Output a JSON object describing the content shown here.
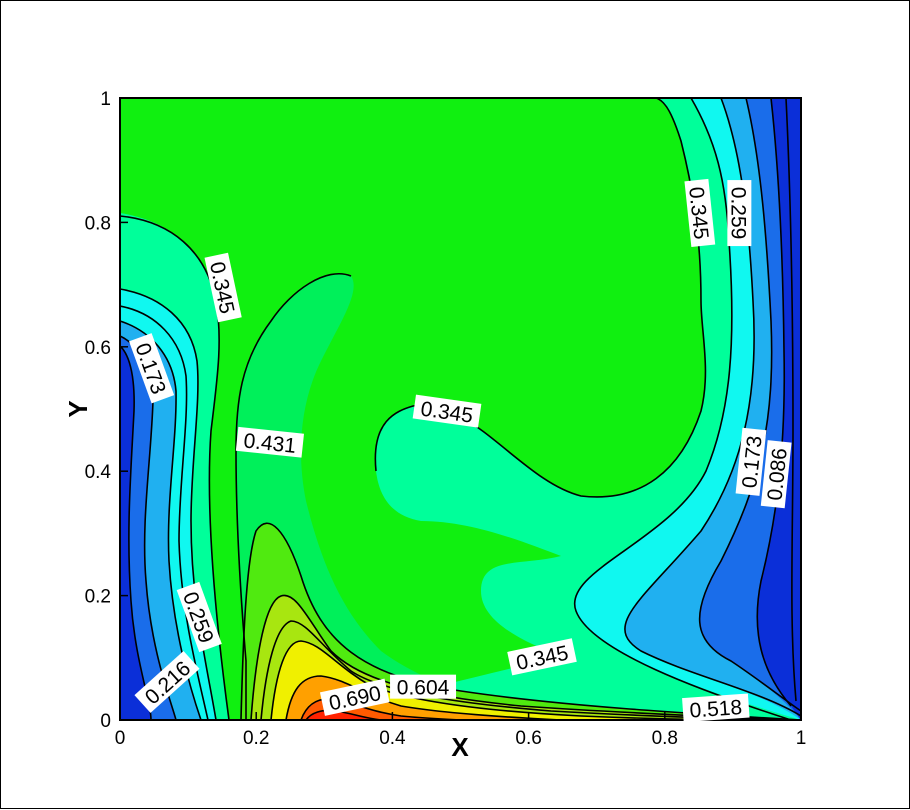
{
  "chart_data": {
    "type": "contour",
    "xlabel": "X",
    "ylabel": "Y",
    "xlim": [
      0,
      1
    ],
    "ylim": [
      0,
      1
    ],
    "x_ticks": [
      "0",
      "0.2",
      "0.4",
      "0.6",
      "0.8",
      "1"
    ],
    "y_ticks": [
      "0",
      "0.2",
      "0.4",
      "0.6",
      "0.8",
      "1"
    ],
    "colormap": [
      "#0b2fd8",
      "#1a6dea",
      "#20b0f0",
      "#10f8f0",
      "#00ff9a",
      "#00f05a",
      "#10f010",
      "#50ea10",
      "#a8e610",
      "#f0f000",
      "#ffa000",
      "#ff5a00",
      "#ff2200"
    ],
    "contour_labels": [
      {
        "text": "0.345",
        "x": 0.15,
        "y": 0.695,
        "angle": 78
      },
      {
        "text": "0.173",
        "x": 0.045,
        "y": 0.565,
        "angle": 70
      },
      {
        "text": "0.431",
        "x": 0.22,
        "y": 0.445,
        "angle": 6
      },
      {
        "text": "0.345",
        "x": 0.48,
        "y": 0.495,
        "angle": 8
      },
      {
        "text": "0.345",
        "x": 0.85,
        "y": 0.815,
        "angle": 84
      },
      {
        "text": "0.259",
        "x": 0.908,
        "y": 0.815,
        "angle": 90
      },
      {
        "text": "0.173",
        "x": 0.928,
        "y": 0.415,
        "angle": -84
      },
      {
        "text": "0.086",
        "x": 0.965,
        "y": 0.395,
        "angle": -84
      },
      {
        "text": "0.259",
        "x": 0.115,
        "y": 0.165,
        "angle": 70
      },
      {
        "text": "0.216",
        "x": 0.07,
        "y": 0.06,
        "angle": -42
      },
      {
        "text": "0.345",
        "x": 0.62,
        "y": 0.1,
        "angle": -12
      },
      {
        "text": "0.604",
        "x": 0.445,
        "y": 0.052,
        "angle": 0
      },
      {
        "text": "0.690",
        "x": 0.345,
        "y": 0.035,
        "angle": -12
      },
      {
        "text": "0.518",
        "x": 0.875,
        "y": 0.018,
        "angle": -4
      }
    ]
  }
}
